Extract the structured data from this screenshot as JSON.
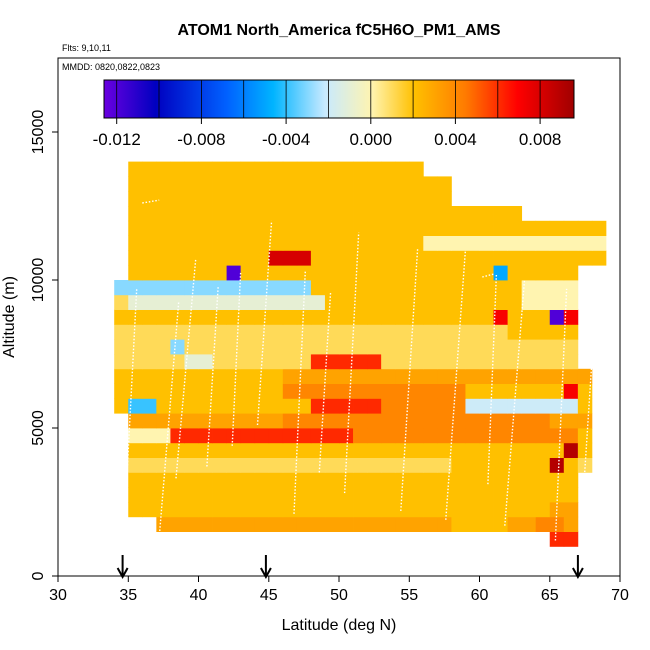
{
  "chart_data": {
    "type": "heatmap",
    "title": "ATOM1 North_America fC5H6O_PM1_AMS",
    "flights_label": "Flts: 9,10,11",
    "dates_label": "MMDD: 0820,0822,0823",
    "xlabel": "Latitude (deg N)",
    "ylabel": "Altitude (m)",
    "xlim": [
      30,
      70
    ],
    "ylim": [
      0,
      17500
    ],
    "xticks": [
      "30",
      "35",
      "40",
      "45",
      "50",
      "55",
      "60",
      "65",
      "70"
    ],
    "yticks": [
      "0",
      "5000",
      "10000",
      "15000"
    ],
    "colorbar": {
      "range": [
        -0.0126,
        0.0096
      ],
      "ticks": [
        "-0.012",
        "-0.008",
        "-0.004",
        "0.000",
        "0.004",
        "0.008"
      ],
      "tick_values": [
        -0.012,
        -0.008,
        -0.004,
        0.0,
        0.004,
        0.008
      ]
    },
    "arrows_at_latitude": [
      34.6,
      44.8,
      67.0
    ],
    "grid": {
      "lat_start": 34,
      "lat_step": 1,
      "alt_start": 1000,
      "alt_step": 500,
      "rows": [
        [
          null,
          null,
          null,
          null,
          null,
          null,
          null,
          null,
          null,
          null,
          null,
          null,
          null,
          null,
          null,
          null,
          null,
          null,
          null,
          null,
          null,
          null,
          null,
          null,
          null,
          null,
          null,
          null,
          null,
          null,
          null,
          0.006,
          0.006,
          null,
          null
        ],
        [
          null,
          null,
          null,
          0.003,
          0.003,
          0.003,
          0.003,
          0.003,
          0.003,
          0.003,
          0.003,
          0.003,
          0.003,
          0.003,
          0.003,
          0.003,
          0.003,
          0.003,
          0.003,
          0.003,
          0.003,
          0.003,
          0.003,
          0.003,
          0.002,
          0.002,
          0.002,
          0.002,
          0.003,
          0.003,
          0.004,
          0.004,
          0.003,
          null,
          null
        ],
        [
          null,
          0.002,
          0.002,
          0.002,
          0.002,
          0.002,
          0.002,
          0.002,
          0.002,
          0.002,
          0.002,
          0.002,
          0.002,
          0.002,
          0.002,
          0.002,
          0.002,
          0.002,
          0.002,
          0.002,
          0.002,
          0.002,
          0.002,
          0.002,
          0.002,
          0.002,
          0.002,
          0.002,
          0.002,
          0.002,
          0.002,
          0.003,
          0.003,
          null,
          null
        ],
        [
          null,
          0.002,
          0.002,
          0.002,
          0.002,
          0.002,
          0.002,
          0.002,
          0.002,
          0.002,
          0.002,
          0.002,
          0.002,
          0.002,
          0.002,
          0.002,
          0.002,
          0.002,
          0.002,
          0.002,
          0.002,
          0.002,
          0.002,
          0.002,
          0.002,
          0.002,
          0.002,
          0.002,
          0.002,
          0.002,
          0.002,
          0.002,
          0.002,
          null,
          null
        ],
        [
          null,
          0.002,
          0.002,
          0.002,
          0.002,
          0.002,
          0.002,
          0.002,
          0.002,
          0.002,
          0.002,
          0.002,
          0.002,
          0.002,
          0.002,
          0.002,
          0.002,
          0.002,
          0.002,
          0.002,
          0.002,
          0.002,
          0.002,
          0.002,
          0.002,
          0.002,
          0.002,
          0.002,
          0.002,
          0.002,
          0.002,
          0.002,
          0.002,
          null,
          null
        ],
        [
          null,
          0.001,
          0.001,
          0.001,
          0.001,
          0.001,
          0.001,
          0.001,
          0.001,
          0.001,
          0.001,
          0.001,
          0.001,
          0.001,
          0.001,
          0.001,
          0.001,
          0.001,
          0.001,
          0.001,
          0.001,
          0.001,
          0.001,
          0.001,
          0.002,
          0.002,
          0.002,
          0.002,
          0.002,
          0.002,
          0.002,
          0.009,
          0.002,
          0.001,
          null
        ],
        [
          null,
          0.002,
          0.002,
          0.002,
          0.002,
          0.002,
          0.002,
          0.002,
          0.002,
          0.002,
          0.002,
          0.002,
          0.002,
          0.002,
          0.002,
          0.002,
          0.002,
          0.002,
          0.002,
          0.002,
          0.002,
          0.002,
          0.002,
          0.002,
          0.002,
          0.002,
          0.002,
          0.002,
          0.002,
          0.002,
          0.002,
          0.002,
          0.009,
          0.002,
          null
        ],
        [
          null,
          0.0,
          0.0,
          0.0,
          0.006,
          0.006,
          0.006,
          0.006,
          0.006,
          0.006,
          0.006,
          0.006,
          0.006,
          0.006,
          0.006,
          0.006,
          0.006,
          0.004,
          0.004,
          0.004,
          0.004,
          0.004,
          0.004,
          0.004,
          0.004,
          0.004,
          0.004,
          0.004,
          0.004,
          0.004,
          0.004,
          0.004,
          0.004,
          0.002,
          null
        ],
        [
          null,
          0.003,
          0.003,
          0.003,
          0.003,
          0.003,
          0.003,
          0.003,
          0.003,
          0.003,
          0.003,
          0.003,
          0.004,
          0.004,
          0.004,
          0.004,
          0.004,
          0.004,
          0.004,
          0.004,
          0.004,
          0.004,
          0.004,
          0.004,
          0.004,
          0.004,
          0.004,
          0.004,
          0.004,
          0.004,
          0.004,
          0.003,
          0.003,
          0.003,
          null
        ],
        [
          0.002,
          -0.004,
          -0.004,
          0.002,
          0.002,
          0.002,
          0.002,
          0.002,
          0.002,
          0.002,
          0.002,
          0.002,
          0.002,
          0.002,
          0.006,
          0.006,
          0.006,
          0.006,
          0.006,
          0.004,
          0.004,
          0.004,
          0.004,
          0.004,
          0.004,
          -0.002,
          -0.002,
          -0.002,
          -0.002,
          -0.002,
          -0.002,
          -0.002,
          -0.002,
          0.002,
          null
        ],
        [
          0.002,
          0.002,
          0.002,
          0.002,
          0.002,
          0.002,
          0.002,
          0.002,
          0.002,
          0.002,
          0.002,
          0.002,
          0.004,
          0.004,
          0.004,
          0.004,
          0.004,
          0.004,
          0.004,
          0.004,
          0.004,
          0.004,
          0.004,
          0.004,
          0.004,
          0.002,
          0.002,
          0.002,
          0.002,
          0.002,
          0.002,
          0.002,
          0.007,
          0.002,
          null
        ],
        [
          0.002,
          0.002,
          0.002,
          0.002,
          0.002,
          0.002,
          0.002,
          0.002,
          0.002,
          0.002,
          0.002,
          0.002,
          0.003,
          0.003,
          0.003,
          0.003,
          0.003,
          0.003,
          0.003,
          0.003,
          0.003,
          0.003,
          0.003,
          0.003,
          0.003,
          0.003,
          0.003,
          0.003,
          0.003,
          0.003,
          0.003,
          0.003,
          0.003,
          0.003,
          null
        ],
        [
          0.001,
          0.001,
          0.001,
          0.001,
          0.001,
          -0.001,
          -0.001,
          0.001,
          0.001,
          0.001,
          0.001,
          0.001,
          0.001,
          0.001,
          0.006,
          0.006,
          0.006,
          0.006,
          0.006,
          0.001,
          0.001,
          0.001,
          0.001,
          0.001,
          0.001,
          0.001,
          0.001,
          0.001,
          0.001,
          0.001,
          0.001,
          0.001,
          0.001,
          null,
          null
        ],
        [
          0.001,
          0.001,
          0.001,
          0.001,
          -0.003,
          0.001,
          0.001,
          0.001,
          0.001,
          0.001,
          0.001,
          0.001,
          0.001,
          0.001,
          0.001,
          0.001,
          0.001,
          0.001,
          0.001,
          0.001,
          0.001,
          0.001,
          0.001,
          0.001,
          0.001,
          0.001,
          0.001,
          0.001,
          0.001,
          0.001,
          0.001,
          0.001,
          0.001,
          null,
          null
        ],
        [
          0.001,
          0.001,
          0.001,
          0.001,
          0.001,
          0.001,
          0.001,
          0.001,
          0.001,
          0.001,
          0.001,
          0.001,
          0.001,
          0.001,
          0.001,
          0.001,
          0.001,
          0.001,
          0.001,
          0.001,
          0.001,
          0.001,
          0.001,
          0.001,
          0.001,
          0.001,
          0.001,
          0.001,
          0.002,
          0.002,
          0.002,
          0.002,
          0.002,
          null,
          null
        ],
        [
          0.002,
          0.002,
          0.002,
          0.002,
          0.002,
          0.002,
          0.002,
          0.002,
          0.002,
          0.002,
          0.002,
          0.002,
          0.002,
          0.002,
          0.002,
          0.002,
          0.002,
          0.002,
          0.002,
          0.002,
          0.002,
          0.002,
          0.002,
          0.002,
          0.002,
          0.002,
          0.002,
          0.007,
          0.002,
          0.002,
          0.002,
          -0.012,
          0.007,
          null,
          null
        ],
        [
          0.001,
          -0.001,
          -0.001,
          -0.001,
          -0.001,
          -0.001,
          -0.001,
          -0.001,
          -0.001,
          -0.001,
          -0.001,
          -0.001,
          -0.001,
          -0.001,
          -0.001,
          0.002,
          0.002,
          0.002,
          0.002,
          0.002,
          0.002,
          0.002,
          0.002,
          0.002,
          0.002,
          0.002,
          0.002,
          0.002,
          0.002,
          0.0,
          0.0,
          0.0,
          0.0,
          null,
          null
        ],
        [
          -0.003,
          -0.003,
          -0.003,
          -0.003,
          -0.003,
          -0.003,
          -0.003,
          -0.003,
          -0.003,
          -0.003,
          -0.003,
          -0.003,
          -0.003,
          -0.003,
          0.002,
          0.002,
          0.002,
          0.002,
          0.002,
          0.002,
          0.002,
          0.002,
          0.002,
          0.002,
          0.002,
          0.002,
          0.002,
          0.002,
          0.002,
          0.0,
          0.0,
          0.0,
          0.0,
          null,
          null
        ],
        [
          null,
          0.002,
          0.002,
          0.002,
          0.002,
          0.002,
          0.002,
          0.002,
          -0.012,
          0.002,
          0.002,
          0.002,
          0.002,
          0.002,
          0.002,
          0.002,
          0.002,
          0.002,
          0.002,
          0.002,
          0.002,
          0.002,
          0.002,
          0.002,
          0.002,
          0.002,
          0.002,
          -0.005,
          0.002,
          0.002,
          0.002,
          0.002,
          0.002,
          null,
          null
        ],
        [
          null,
          0.002,
          0.002,
          0.002,
          0.002,
          0.002,
          0.002,
          0.002,
          0.002,
          0.002,
          0.002,
          0.008,
          0.008,
          0.008,
          0.002,
          0.002,
          0.002,
          0.002,
          0.002,
          0.002,
          0.002,
          0.002,
          0.002,
          0.002,
          0.002,
          0.002,
          0.002,
          0.002,
          0.002,
          0.002,
          0.002,
          0.002,
          0.002,
          0.002,
          0.002
        ],
        [
          null,
          0.002,
          0.002,
          0.002,
          0.002,
          0.002,
          0.002,
          0.002,
          0.002,
          0.002,
          0.002,
          0.002,
          0.002,
          0.002,
          0.002,
          0.002,
          0.002,
          0.002,
          0.002,
          0.002,
          0.002,
          0.002,
          0.0,
          0.0,
          0.0,
          0.0,
          0.0,
          0.0,
          0.0,
          0.0,
          0.0,
          0.0,
          0.0,
          0.0,
          0.0
        ],
        [
          null,
          0.002,
          0.002,
          0.002,
          0.002,
          0.002,
          0.002,
          0.002,
          0.002,
          0.002,
          0.002,
          0.002,
          0.002,
          0.002,
          0.002,
          0.002,
          0.002,
          0.002,
          0.002,
          0.002,
          0.002,
          0.002,
          0.002,
          0.002,
          0.002,
          0.002,
          0.002,
          0.002,
          0.002,
          0.002,
          0.002,
          0.002,
          0.002,
          0.002,
          0.002
        ],
        [
          null,
          0.002,
          0.002,
          0.002,
          0.002,
          0.002,
          0.002,
          0.002,
          0.002,
          0.002,
          0.002,
          0.002,
          0.002,
          0.002,
          0.002,
          0.002,
          0.002,
          0.002,
          0.002,
          0.002,
          0.002,
          0.002,
          0.002,
          0.002,
          0.002,
          0.002,
          0.002,
          0.002,
          0.002,
          null,
          null,
          null,
          null,
          null,
          null
        ],
        [
          null,
          0.002,
          0.002,
          0.002,
          0.002,
          0.002,
          0.002,
          0.002,
          0.002,
          0.002,
          0.002,
          0.002,
          0.002,
          0.002,
          0.002,
          0.002,
          0.002,
          0.002,
          0.002,
          0.002,
          0.002,
          0.002,
          0.002,
          0.002,
          null,
          null,
          null,
          null,
          null,
          null,
          null,
          null,
          null,
          null,
          null
        ],
        [
          null,
          0.002,
          0.002,
          0.002,
          0.002,
          0.002,
          0.002,
          0.002,
          0.002,
          0.002,
          0.002,
          0.002,
          0.002,
          0.002,
          0.002,
          0.002,
          0.002,
          0.002,
          0.002,
          0.002,
          0.002,
          0.002,
          0.002,
          0.002,
          null,
          null,
          null,
          null,
          null,
          null,
          null,
          null,
          null,
          null,
          null
        ],
        [
          null,
          0.002,
          0.002,
          0.002,
          0.002,
          0.002,
          0.002,
          0.002,
          0.002,
          0.002,
          0.002,
          0.002,
          0.002,
          0.002,
          0.002,
          0.002,
          0.002,
          0.002,
          0.002,
          0.002,
          0.002,
          0.002,
          null,
          null,
          null,
          null,
          null,
          null,
          null,
          null,
          null,
          null,
          null,
          null,
          null
        ]
      ]
    }
  }
}
